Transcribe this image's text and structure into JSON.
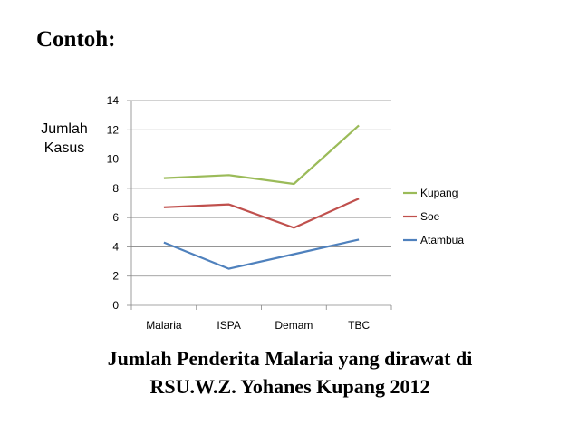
{
  "slide": {
    "heading": "Contoh:",
    "caption_line1": "Jumlah Penderita Malaria yang dirawat di",
    "caption_line2": "RSU.W.Z. Yohanes Kupang 2012"
  },
  "chart_data": {
    "type": "line",
    "title": "",
    "ylabel_line1": "Jumlah",
    "ylabel_line2": "Kasus",
    "xlabel": "",
    "categories": [
      "Malaria",
      "ISPA",
      "Demam",
      "TBC"
    ],
    "ylim": [
      0,
      14
    ],
    "yticks": [
      0,
      2,
      4,
      6,
      8,
      10,
      12,
      14
    ],
    "grid": true,
    "legend_position": "right",
    "series": [
      {
        "name": "Kupang",
        "color": "#9BBB59",
        "values": [
          8.7,
          8.9,
          8.3,
          12.3
        ]
      },
      {
        "name": "Soe",
        "color": "#C0504D",
        "values": [
          6.7,
          6.9,
          5.3,
          7.3
        ]
      },
      {
        "name": "Atambua",
        "color": "#4F81BD",
        "values": [
          4.3,
          2.5,
          3.5,
          4.5
        ]
      }
    ]
  }
}
